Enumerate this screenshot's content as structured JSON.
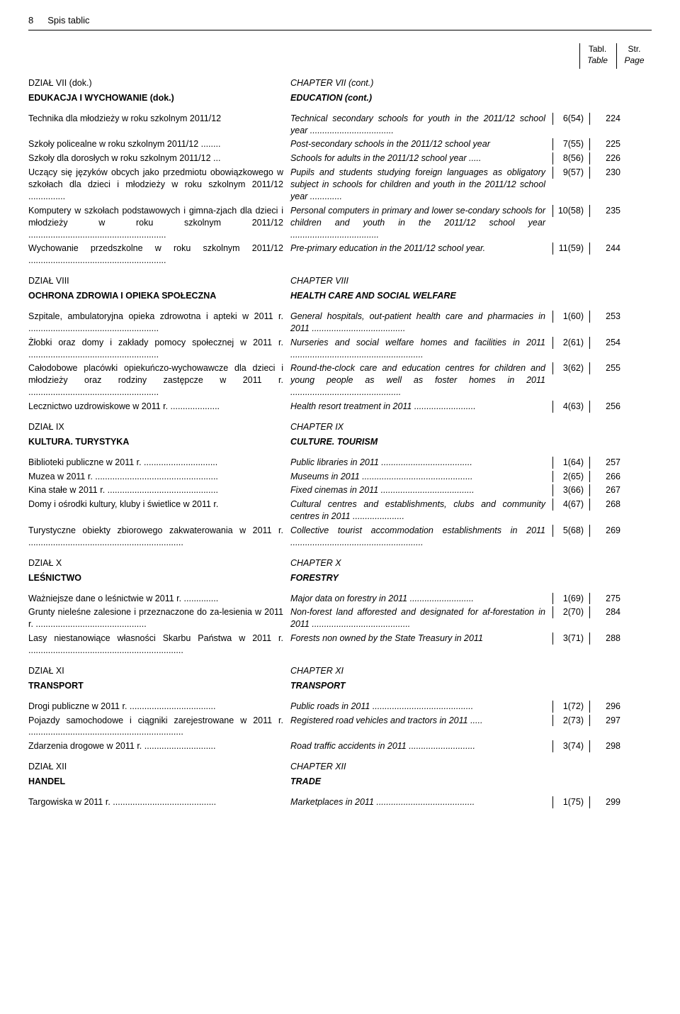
{
  "header": {
    "page_number": "8",
    "section_title": "Spis tablic",
    "col1_pl": "Tabl.",
    "col1_en": "Table",
    "col2_pl": "Str.",
    "col2_en": "Page"
  },
  "top_labels": {
    "left_pl": "DZIAŁ  VII (dok.)",
    "left_bold_pl": "EDUKACJA  I  WYCHOWANIE (dok.)",
    "right_pl": "CHAPTER  VII (cont.)",
    "right_bold_pl": "EDUCATION (cont.)"
  },
  "rows7": [
    {
      "l": "Technika dla młodzieży w roku szkolnym 2011/12",
      "r": "Technical secondary schools for youth in the 2011/12 school year ..................................",
      "t": "6(54)",
      "p": "224"
    },
    {
      "l": "Szkoły policealne w roku szkolnym 2011/12 ........",
      "r": "Post-secondary schools in the 2011/12 school year",
      "t": "7(55)",
      "p": "225"
    },
    {
      "l": "Szkoły dla dorosłych w roku szkolnym 2011/12 ...",
      "r": "Schools for adults in the 2011/12 school year .....",
      "t": "8(56)",
      "p": "226"
    },
    {
      "l": "Uczący się języków obcych jako przedmiotu obowiązkowego w szkołach dla dzieci i młodzieży w roku szkolnym 2011/12 ...............",
      "r": "Pupils and students studying foreign languages as obligatory subject in schools for children and youth in the 2011/12 school year .............",
      "t": "9(57)",
      "p": "230"
    },
    {
      "l": "Komputery w szkołach podstawowych i gimna-zjach dla dzieci i młodzieży w roku szkolnym 2011/12 ........................................................",
      "r": "Personal computers in primary and lower se-condary schools for children and youth in the 2011/12 school year ....................................",
      "t": "10(58)",
      "p": "235"
    },
    {
      "l": "Wychowanie przedszkolne w roku szkolnym 2011/12 ........................................................",
      "r": "Pre-primary education in the 2011/12 school year.",
      "t": "11(59)",
      "p": "244"
    }
  ],
  "section8": {
    "label_l": "DZIAŁ  VIII",
    "title_l": "OCHRONA  ZDROWIA  I  OPIEKA SPOŁECZNA",
    "label_r": "CHAPTER  VIII",
    "title_r": "HEALTH  CARE  AND  SOCIAL WELFARE"
  },
  "rows8": [
    {
      "l": "Szpitale, ambulatoryjna opieka zdrowotna i apteki w 2011 r. .....................................................",
      "r": "General hospitals, out-patient health care and pharmacies in 2011 ......................................",
      "t": "1(60)",
      "p": "253"
    },
    {
      "l": "Żłobki oraz domy i zakłady pomocy społecznej w 2011 r. .....................................................",
      "r": "Nurseries and social welfare homes and facilities in 2011 ......................................................",
      "t": "2(61)",
      "p": "254"
    },
    {
      "l": "Całodobowe placówki opiekuńczo-wychowawcze dla dzieci i młodzieży oraz rodziny zastępcze w 2011 r. .....................................................",
      "r": "Round-the-clock care and education centres for children and young people as well as foster homes in 2011 .............................................",
      "t": "3(62)",
      "p": "255"
    },
    {
      "l": "Lecznictwo uzdrowiskowe w 2011 r. ....................",
      "r": "Health resort treatment in 2011 .........................",
      "t": "4(63)",
      "p": "256"
    }
  ],
  "section9": {
    "label_l": "DZIAŁ  IX",
    "title_l": "KULTURA. TURYSTYKA",
    "label_r": "CHAPTER  IX",
    "title_r": "CULTURE. TOURISM"
  },
  "rows9": [
    {
      "l": "Biblioteki publiczne w 2011 r. ..............................",
      "r": "Public libraries in 2011 .....................................",
      "t": "1(64)",
      "p": "257"
    },
    {
      "l": "Muzea w 2011 r. ..................................................",
      "r": "Museums in 2011 .............................................",
      "t": "2(65)",
      "p": "266"
    },
    {
      "l": "Kina stałe w 2011 r. .............................................",
      "r": "Fixed cinemas in 2011 ......................................",
      "t": "3(66)",
      "p": "267"
    },
    {
      "l": "Domy i ośrodki kultury, kluby i świetlice w 2011 r.",
      "r": "Cultural centres and establishments, clubs and community centres in 2011 .....................",
      "t": "4(67)",
      "p": "268"
    },
    {
      "l": "Turystyczne obiekty zbiorowego zakwaterowania w 2011 r. ...............................................................",
      "r": "Collective tourist accommodation establishments in 2011 ......................................................",
      "t": "5(68)",
      "p": "269"
    }
  ],
  "section10": {
    "label_l": "DZIAŁ  X",
    "title_l": "LEŚNICTWO",
    "label_r": "CHAPTER  X",
    "title_r": "FORESTRY"
  },
  "rows10": [
    {
      "l": "Ważniejsze dane o leśnictwie w 2011 r. ..............",
      "r": "Major data on forestry in 2011 ..........................",
      "t": "1(69)",
      "p": "275"
    },
    {
      "l": "Grunty nieleśne zalesione i przeznaczone do za-lesienia w 2011 r. .............................................",
      "r": "Non-forest land afforested and designated for af-forestation in 2011 ........................................",
      "t": "2(70)",
      "p": "284"
    },
    {
      "l": "Lasy niestanowiące własności Skarbu Państwa w 2011 r. ...............................................................",
      "r": "Forests non owned by the State Treasury in 2011",
      "t": "3(71)",
      "p": "288"
    }
  ],
  "section11": {
    "label_l": "DZIAŁ  XI",
    "title_l": "TRANSPORT",
    "label_r": "CHAPTER  XI",
    "title_r": "TRANSPORT"
  },
  "rows11": [
    {
      "l": "Drogi publiczne w 2011 r. ...................................",
      "r": "Public roads in 2011 .........................................",
      "t": "1(72)",
      "p": "296"
    },
    {
      "l": "Pojazdy samochodowe i ciągniki zarejestrowane w 2011 r. ...............................................................",
      "r": "Registered road vehicles and tractors in 2011 .....",
      "t": "2(73)",
      "p": "297"
    },
    {
      "l": "Zdarzenia drogowe w 2011 r. .............................",
      "r": "Road traffic accidents in 2011 ...........................",
      "t": "3(74)",
      "p": "298"
    }
  ],
  "section12": {
    "label_l": "DZIAŁ  XII",
    "title_l": "HANDEL",
    "label_r": "CHAPTER  XII",
    "title_r": "TRADE"
  },
  "rows12": [
    {
      "l": "Targowiska w 2011 r. ..........................................",
      "r": "Marketplaces in 2011 ........................................",
      "t": "1(75)",
      "p": "299"
    }
  ]
}
